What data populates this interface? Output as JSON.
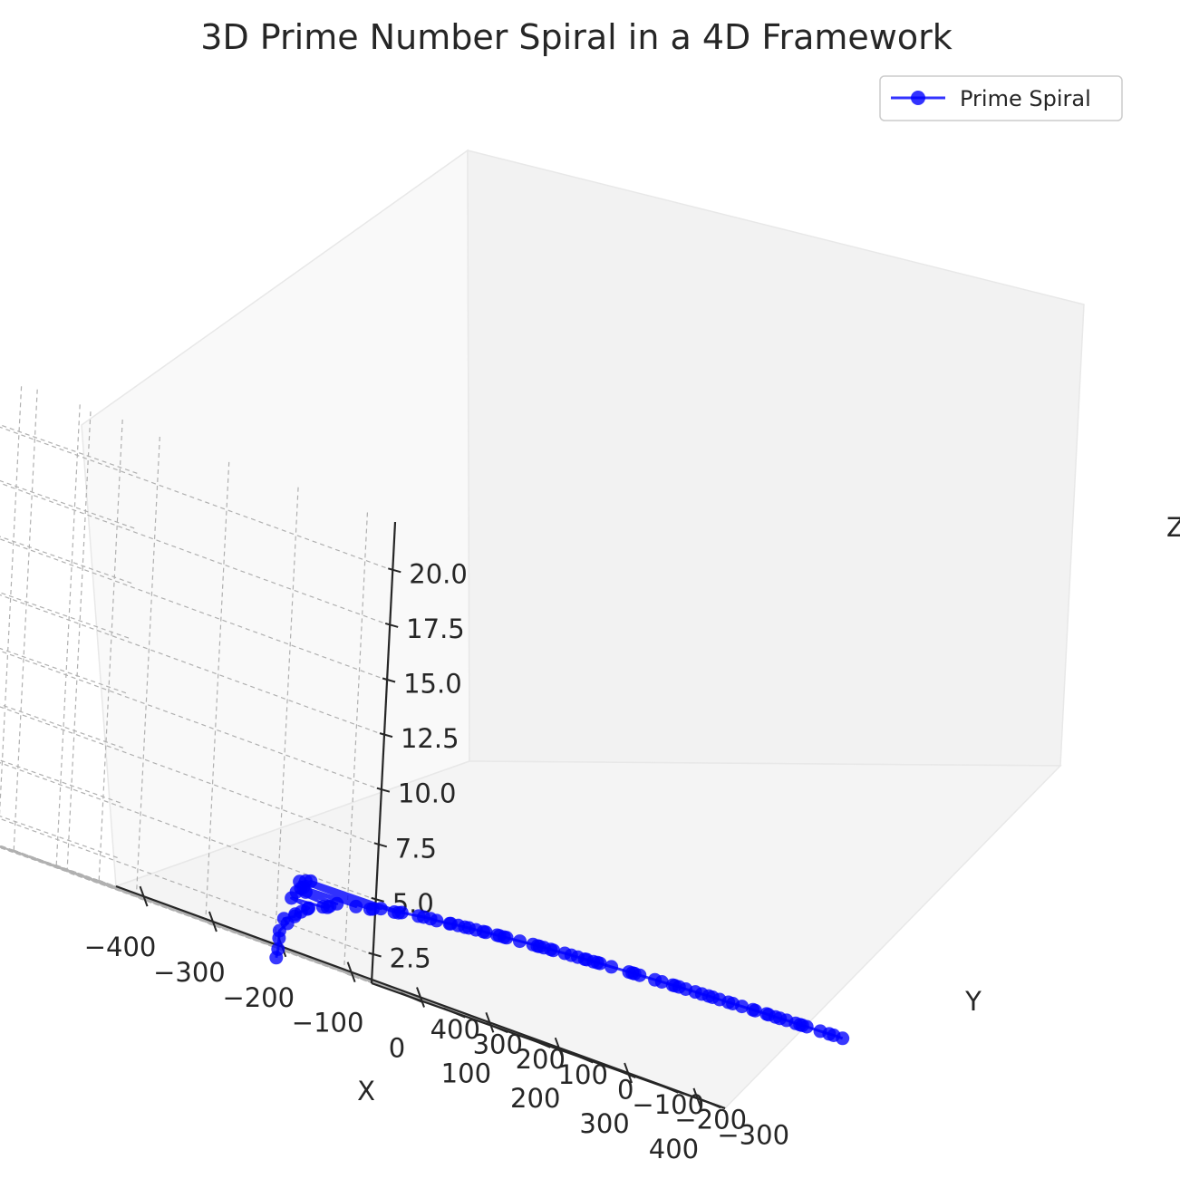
{
  "chart_data": {
    "type": "line3d",
    "title": "3D Prime Number Spiral in a 4D Framework",
    "xlabel": "X",
    "ylabel": "Y",
    "zlabel": "Z",
    "xticks": [
      "−400",
      "−300",
      "−200",
      "−100",
      "0",
      "100",
      "200",
      "300",
      "400"
    ],
    "yticks": [
      "−300",
      "−200",
      "−100",
      "0",
      "100",
      "200",
      "300",
      "400"
    ],
    "zticks": [
      "2.5",
      "5.0",
      "7.5",
      "10.0",
      "12.5",
      "15.0",
      "17.5",
      "20.0"
    ],
    "xlim": [
      -440,
      440
    ],
    "ylim": [
      -340,
      490
    ],
    "zlim": [
      1.2,
      22.2
    ],
    "grid": true,
    "legend": "top-right",
    "series": [
      {
        "name": "Prime Spiral",
        "color": "#0000ff",
        "marker": "circle",
        "points": [
          [
            2,
            0.7,
            0.69
          ],
          [
            3,
            -0.9,
            1.1
          ],
          [
            5,
            1.4,
            1.61
          ],
          [
            7,
            4.6,
            1.95
          ],
          [
            11,
            -6.3,
            2.4
          ],
          [
            13,
            5.5,
            2.56
          ],
          [
            17,
            -12.4,
            2.83
          ],
          [
            19,
            -10.3,
            2.94
          ],
          [
            23,
            -17.2,
            3.14
          ],
          [
            29,
            -22.1,
            3.37
          ],
          [
            31,
            -21.2,
            3.43
          ],
          [
            37,
            29.5,
            3.61
          ],
          [
            41,
            -37.5,
            3.71
          ],
          [
            43,
            -44.8,
            3.76
          ],
          [
            47,
            -43.4,
            3.85
          ],
          [
            53,
            44.7,
            3.97
          ],
          [
            59,
            -40.3,
            4.08
          ],
          [
            61,
            36.3,
            4.11
          ],
          [
            67,
            58.0,
            4.2
          ],
          [
            71,
            -65.0,
            4.26
          ],
          [
            73,
            61.8,
            4.29
          ],
          [
            79,
            -84.9,
            4.37
          ],
          [
            83,
            -84.7,
            4.42
          ],
          [
            89,
            97.2,
            4.49
          ],
          [
            97,
            -80.4,
            4.57
          ],
          [
            101,
            102.5,
            4.62
          ],
          [
            103,
            -102.1,
            4.63
          ],
          [
            107,
            -105.3,
            4.67
          ],
          [
            109,
            104.2,
            4.69
          ],
          [
            113,
            -103.1,
            4.73
          ],
          [
            127,
            -119.3,
            4.84
          ],
          [
            131,
            -124.8,
            4.88
          ],
          [
            137,
            -131.2,
            4.92
          ],
          [
            139,
            -142.1,
            4.93
          ],
          [
            149,
            -156.2,
            5.0
          ],
          [
            151,
            -155.6,
            5.02
          ],
          [
            157,
            -163.4,
            5.06
          ],
          [
            163,
            -168.9,
            5.09
          ],
          [
            167,
            -172.0,
            5.12
          ],
          [
            173,
            -178.5,
            5.15
          ],
          [
            179,
            -186.2,
            5.19
          ],
          [
            181,
            -188.8,
            5.2
          ],
          [
            191,
            -198.7,
            5.25
          ],
          [
            193,
            -201.2,
            5.26
          ],
          [
            197,
            -205.4,
            5.28
          ],
          [
            199,
            -208.0,
            5.29
          ],
          [
            211,
            -219.2,
            5.35
          ],
          [
            223,
            -230.5,
            5.41
          ],
          [
            227,
            -234.6,
            5.42
          ],
          [
            229,
            -236.0,
            5.43
          ],
          [
            233,
            -240.3,
            5.45
          ],
          [
            239,
            -246.1,
            5.48
          ],
          [
            241,
            -248.9,
            5.48
          ],
          [
            251,
            -259.4,
            5.53
          ],
          [
            257,
            -264.7,
            5.55
          ],
          [
            263,
            -270.3,
            5.57
          ],
          [
            269,
            -276.8,
            5.59
          ],
          [
            271,
            -278.2,
            5.6
          ],
          [
            277,
            -284.0,
            5.62
          ],
          [
            281,
            -287.1,
            5.64
          ],
          [
            283,
            -289.8,
            5.65
          ],
          [
            293,
            -300.2,
            5.68
          ],
          [
            307,
            -318.6,
            5.73
          ],
          [
            311,
            -320.0,
            5.74
          ],
          [
            313,
            -322.1,
            5.75
          ],
          [
            317,
            -327.5,
            5.76
          ],
          [
            331,
            -340.3,
            5.8
          ],
          [
            337,
            -346.8,
            5.82
          ],
          [
            347,
            -356.1,
            5.85
          ],
          [
            349,
            -358.0,
            5.86
          ],
          [
            353,
            -361.2,
            5.87
          ],
          [
            359,
            -367.0,
            5.88
          ],
          [
            367,
            -376.4,
            5.91
          ],
          [
            373,
            -382.0,
            5.92
          ],
          [
            379,
            -388.1,
            5.94
          ],
          [
            383,
            -391.0,
            5.95
          ],
          [
            389,
            -397.5,
            5.96
          ],
          [
            397,
            -405.2,
            5.98
          ],
          [
            401,
            -409.0,
            5.99
          ],
          [
            409,
            -417.3,
            6.01
          ],
          [
            419,
            -427.0,
            6.04
          ],
          [
            421,
            -429.1,
            6.04
          ],
          [
            431,
            -439.2,
            6.07
          ],
          [
            433,
            -441.0,
            6.07
          ],
          [
            439,
            -447.1,
            6.08
          ],
          [
            443,
            -451.2,
            6.09
          ],
          [
            449,
            -457.0,
            6.11
          ],
          [
            457,
            -465.3,
            6.12
          ],
          [
            461,
            -469.0,
            6.13
          ],
          [
            463,
            -471.2,
            6.14
          ],
          [
            467,
            -475.0,
            6.15
          ],
          [
            479,
            -487.1,
            6.17
          ],
          [
            487,
            -495.0,
            6.19
          ],
          [
            491,
            -499.2,
            6.2
          ],
          [
            499,
            -507.0,
            6.21
          ]
        ]
      }
    ]
  }
}
